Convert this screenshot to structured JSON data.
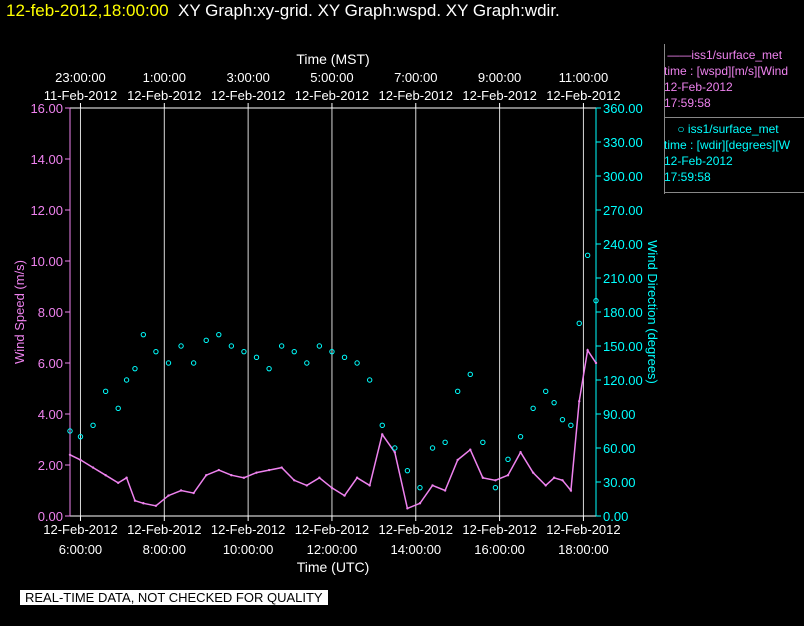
{
  "header": {
    "date": "12-feb-2012,18:00:00",
    "graphs": "XY Graph:xy-grid.  XY Graph:wspd.  XY Graph:wdir."
  },
  "legend": {
    "wspd": {
      "name": "iss1/surface_met",
      "desc": "time : [wspd][m/s][Wind",
      "date": "12-Feb-2012",
      "time": "17:59:58"
    },
    "wdir": {
      "name": "iss1/surface_met",
      "desc": "time : [wdir][degrees][W",
      "date": "12-Feb-2012",
      "time": "17:59:58"
    }
  },
  "footer_note": "REAL-TIME DATA, NOT CHECKED FOR QUALITY",
  "colors": {
    "wspd": "#ee82ee",
    "wdir": "#00ffff",
    "title_date": "#ffff00",
    "background": "#000000"
  },
  "chart_data": {
    "type": "line",
    "top_axis": {
      "label": "Time (MST)",
      "ticks": [
        {
          "time": "23:00:00",
          "date": "11-Feb-2012"
        },
        {
          "time": "1:00:00",
          "date": "12-Feb-2012"
        },
        {
          "time": "3:00:00",
          "date": "12-Feb-2012"
        },
        {
          "time": "5:00:00",
          "date": "12-Feb-2012"
        },
        {
          "time": "7:00:00",
          "date": "12-Feb-2012"
        },
        {
          "time": "9:00:00",
          "date": "12-Feb-2012"
        },
        {
          "time": "11:00:00",
          "date": "12-Feb-2012"
        }
      ]
    },
    "bottom_axis": {
      "label": "Time (UTC)",
      "range_hours": [
        5.75,
        18.3
      ],
      "ticks": [
        {
          "hour": 6,
          "date": "12-Feb-2012",
          "time": "6:00:00"
        },
        {
          "hour": 8,
          "date": "12-Feb-2012",
          "time": "8:00:00"
        },
        {
          "hour": 10,
          "date": "12-Feb-2012",
          "time": "10:00:00"
        },
        {
          "hour": 12,
          "date": "12-Feb-2012",
          "time": "12:00:00"
        },
        {
          "hour": 14,
          "date": "12-Feb-2012",
          "time": "14:00:00"
        },
        {
          "hour": 16,
          "date": "12-Feb-2012",
          "time": "16:00:00"
        },
        {
          "hour": 18,
          "date": "12-Feb-2012",
          "time": "18:00:00"
        }
      ]
    },
    "left_axis": {
      "label": "Wind Speed (m/s)",
      "range": [
        0,
        16
      ],
      "ticks": [
        "0.00",
        "2.00",
        "4.00",
        "6.00",
        "8.00",
        "10.00",
        "12.00",
        "14.00",
        "16.00"
      ]
    },
    "right_axis": {
      "label": "Wind Direction (degrees)",
      "range": [
        0,
        360
      ],
      "ticks": [
        "0.00",
        "30.00",
        "60.00",
        "90.00",
        "120.00",
        "150.00",
        "180.00",
        "210.00",
        "240.00",
        "270.00",
        "300.00",
        "330.00",
        "360.00"
      ]
    },
    "grid": "vertical",
    "series": [
      {
        "name": "iss1/surface_met",
        "axis": "left",
        "style": "line",
        "x_hour": [
          5.75,
          6.0,
          6.3,
          6.6,
          6.9,
          7.1,
          7.3,
          7.5,
          7.8,
          8.1,
          8.4,
          8.7,
          9.0,
          9.3,
          9.6,
          9.9,
          10.2,
          10.5,
          10.8,
          11.1,
          11.4,
          11.7,
          12.0,
          12.3,
          12.6,
          12.9,
          13.2,
          13.5,
          13.8,
          14.1,
          14.4,
          14.7,
          15.0,
          15.3,
          15.6,
          15.9,
          16.2,
          16.5,
          16.8,
          17.1,
          17.3,
          17.5,
          17.7,
          17.9,
          18.1,
          18.3
        ],
        "y": [
          2.4,
          2.2,
          1.9,
          1.6,
          1.3,
          1.5,
          0.6,
          0.5,
          0.4,
          0.8,
          1.0,
          0.9,
          1.6,
          1.8,
          1.6,
          1.5,
          1.7,
          1.8,
          1.9,
          1.4,
          1.2,
          1.5,
          1.1,
          0.8,
          1.5,
          1.2,
          3.2,
          2.5,
          0.3,
          0.5,
          1.2,
          1.0,
          2.2,
          2.6,
          1.5,
          1.4,
          1.6,
          2.5,
          1.7,
          1.2,
          1.5,
          1.4,
          1.0,
          4.5,
          6.5,
          6.0
        ]
      },
      {
        "name": "iss1/surface_met",
        "axis": "right",
        "style": "points",
        "x_hour": [
          5.75,
          6.0,
          6.3,
          6.6,
          6.9,
          7.1,
          7.3,
          7.5,
          7.8,
          8.1,
          8.4,
          8.7,
          9.0,
          9.3,
          9.6,
          9.9,
          10.2,
          10.5,
          10.8,
          11.1,
          11.4,
          11.7,
          12.0,
          12.3,
          12.6,
          12.9,
          13.2,
          13.5,
          13.8,
          14.1,
          14.4,
          14.7,
          15.0,
          15.3,
          15.6,
          15.9,
          16.2,
          16.5,
          16.8,
          17.1,
          17.3,
          17.5,
          17.7,
          17.9,
          18.1,
          18.3
        ],
        "y": [
          75,
          70,
          80,
          110,
          95,
          120,
          130,
          160,
          145,
          135,
          150,
          135,
          155,
          160,
          150,
          145,
          140,
          130,
          150,
          145,
          135,
          150,
          145,
          140,
          135,
          120,
          80,
          60,
          40,
          25,
          60,
          65,
          110,
          125,
          65,
          25,
          50,
          70,
          95,
          110,
          100,
          85,
          80,
          170,
          230,
          190
        ]
      }
    ]
  }
}
